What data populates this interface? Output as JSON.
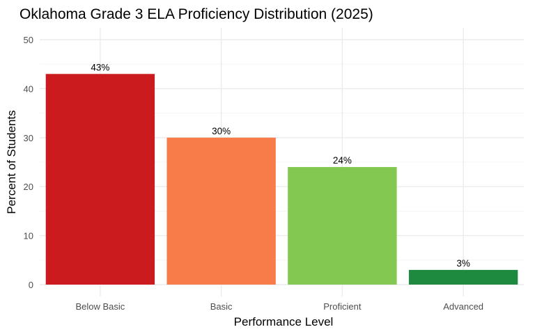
{
  "chart_data": {
    "type": "bar",
    "title": "Oklahoma Grade 3 ELA Proficiency Distribution (2025)",
    "xlabel": "Performance Level",
    "ylabel": "Percent of Students",
    "categories": [
      "Below Basic",
      "Basic",
      "Proficient",
      "Advanced"
    ],
    "values": [
      43,
      30,
      24,
      3
    ],
    "data_labels": [
      "43%",
      "30%",
      "24%",
      "3%"
    ],
    "colors": [
      "#CB1B1F",
      "#F87C4A",
      "#82C851",
      "#1D8A40"
    ],
    "ylim": [
      0,
      52
    ],
    "yticks": [
      0,
      10,
      20,
      30,
      40,
      50
    ],
    "ytick_labels": [
      "0",
      "10",
      "20",
      "30",
      "40",
      "50"
    ],
    "grid": true,
    "legend": "none"
  }
}
